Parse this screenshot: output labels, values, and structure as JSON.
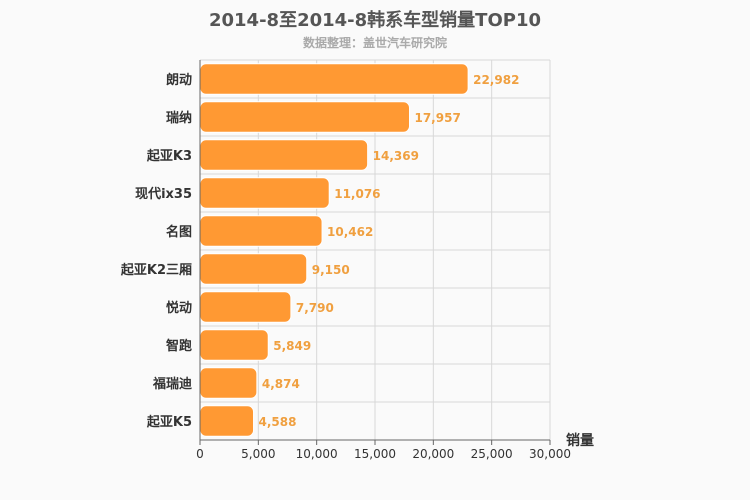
{
  "chart_data": {
    "type": "bar",
    "orientation": "horizontal",
    "title": "2014-8至2014-8韩系车型销量TOP10",
    "subtitle": "数据整理：盖世汽车研究院",
    "categories": [
      "朗动",
      "瑞纳",
      "起亚K3",
      "现代ix35",
      "名图",
      "起亚K2三厢",
      "悦动",
      "智跑",
      "福瑞迪",
      "起亚K5"
    ],
    "values": [
      22982,
      17957,
      14369,
      11076,
      10462,
      9150,
      7790,
      5849,
      4874,
      4588
    ],
    "value_labels": [
      "22,982",
      "17,957",
      "14,369",
      "11,076",
      "10,462",
      "9,150",
      "7,790",
      "5,849",
      "4,874",
      "4,588"
    ],
    "xlabel": "销量",
    "ylabel": "",
    "xlim": [
      0,
      30000
    ],
    "xticks": [
      0,
      5000,
      10000,
      15000,
      20000,
      25000,
      30000
    ],
    "xtick_labels": [
      "0",
      "5,000",
      "10,000",
      "15,000",
      "20,000",
      "25,000",
      "30,000"
    ],
    "grid": true,
    "colors": {
      "bar": "#ff9933",
      "bar_stroke": "#ffffff",
      "data_label": "#f0a040",
      "grid": "#d8d8d8",
      "axis": "#666666"
    }
  }
}
